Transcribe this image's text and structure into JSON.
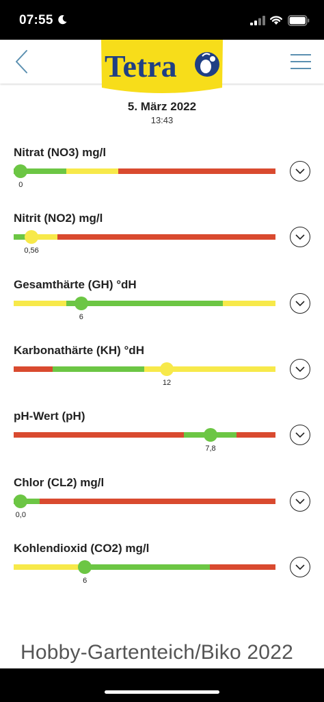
{
  "status_bar": {
    "time": "07:55"
  },
  "header": {
    "logo_text": "Tetra"
  },
  "measurement": {
    "date": "5. März 2022",
    "time": "13:43"
  },
  "colors": {
    "green": "#6cc644",
    "yellow": "#f7e94a",
    "red": "#d94a2f"
  },
  "parameters": [
    {
      "label": "Nitrat (NO3) mg/l",
      "value_label": "0",
      "marker_fraction": 0.027,
      "marker_color": "green",
      "segments": [
        {
          "color": "green",
          "fraction": 0.2
        },
        {
          "color": "yellow",
          "fraction": 0.2
        },
        {
          "color": "red",
          "fraction": 0.6
        }
      ]
    },
    {
      "label": "Nitrit (NO2) mg/l",
      "value_label": "0,56",
      "marker_fraction": 0.068,
      "marker_color": "yellow",
      "segments": [
        {
          "color": "green",
          "fraction": 0.05
        },
        {
          "color": "yellow",
          "fraction": 0.117
        },
        {
          "color": "red",
          "fraction": 0.833
        }
      ]
    },
    {
      "label": "Gesamthärte (GH) °dH",
      "value_label": "6",
      "marker_fraction": 0.258,
      "marker_color": "green",
      "segments": [
        {
          "color": "yellow",
          "fraction": 0.2
        },
        {
          "color": "green",
          "fraction": 0.6
        },
        {
          "color": "yellow",
          "fraction": 0.2
        }
      ]
    },
    {
      "label": "Karbonathärte (KH) °dH",
      "value_label": "12",
      "marker_fraction": 0.585,
      "marker_color": "yellow",
      "segments": [
        {
          "color": "red",
          "fraction": 0.15
        },
        {
          "color": "green",
          "fraction": 0.35
        },
        {
          "color": "yellow",
          "fraction": 0.5
        }
      ]
    },
    {
      "label": "pH-Wert (pH)",
      "value_label": "7,8",
      "marker_fraction": 0.752,
      "marker_color": "green",
      "segments": [
        {
          "color": "red",
          "fraction": 0.65
        },
        {
          "color": "green",
          "fraction": 0.2
        },
        {
          "color": "red",
          "fraction": 0.15
        }
      ]
    },
    {
      "label": "Chlor (CL2) mg/l",
      "value_label": "0,0",
      "marker_fraction": 0.027,
      "marker_color": "green",
      "segments": [
        {
          "color": "green",
          "fraction": 0.1
        },
        {
          "color": "red",
          "fraction": 0.9
        }
      ]
    },
    {
      "label": "Kohlendioxid (CO2) mg/l",
      "value_label": "6",
      "marker_fraction": 0.272,
      "marker_color": "green",
      "segments": [
        {
          "color": "yellow",
          "fraction": 0.25
        },
        {
          "color": "green",
          "fraction": 0.5
        },
        {
          "color": "red",
          "fraction": 0.25
        }
      ]
    }
  ],
  "watermark": "Hobby-Gartenteich/Biko 2022"
}
